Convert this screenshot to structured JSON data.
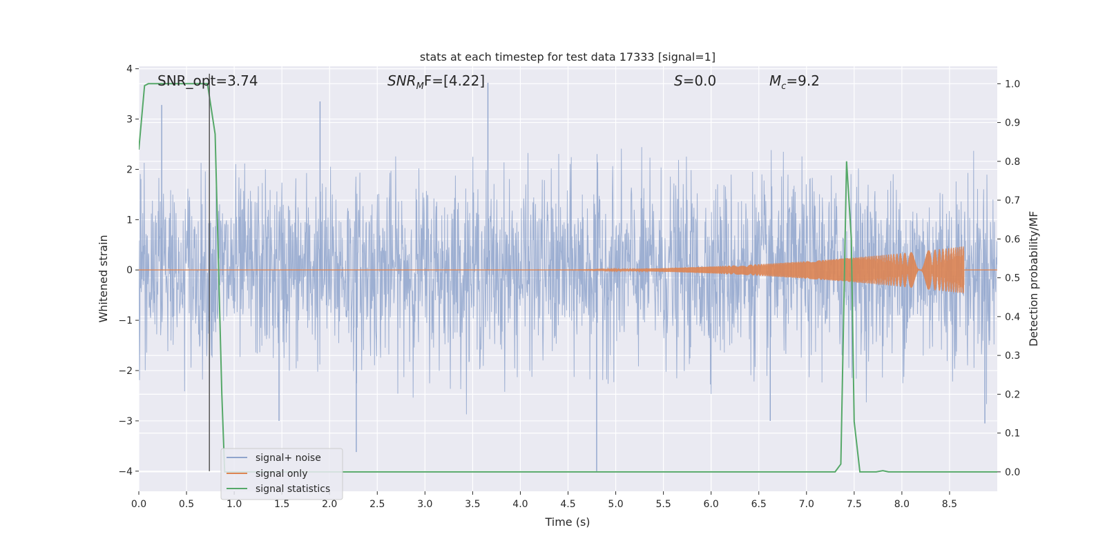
{
  "chart_data": {
    "type": "line",
    "title": "stats at each timestep for test data 17333 [signal=1]",
    "xlabel": "Time (s)",
    "ylabel": "Whitened strain",
    "y2label": "Detection probability/MF",
    "xlim": [
      0.0,
      9.0
    ],
    "ylim": [
      -4.4,
      4.05
    ],
    "y2lim": [
      -0.05,
      1.045
    ],
    "xticks": [
      "0.0",
      "0.5",
      "1.0",
      "1.5",
      "2.0",
      "2.5",
      "3.0",
      "3.5",
      "4.0",
      "4.5",
      "5.0",
      "5.5",
      "6.0",
      "6.5",
      "7.0",
      "7.5",
      "8.0",
      "8.5"
    ],
    "xtick_values": [
      0.0,
      0.5,
      1.0,
      1.5,
      2.0,
      2.5,
      3.0,
      3.5,
      4.0,
      4.5,
      5.0,
      5.5,
      6.0,
      6.5,
      7.0,
      7.5,
      8.0,
      8.5
    ],
    "yticks": [
      "−4",
      "−3",
      "−2",
      "−1",
      "0",
      "1",
      "2",
      "3",
      "4"
    ],
    "ytick_values": [
      -4,
      -3,
      -2,
      -1,
      0,
      1,
      2,
      3,
      4
    ],
    "y2ticks": [
      "0.0",
      "0.1",
      "0.2",
      "0.3",
      "0.4",
      "0.5",
      "0.6",
      "0.7",
      "0.8",
      "0.9",
      "1.0"
    ],
    "y2tick_values": [
      0.0,
      0.1,
      0.2,
      0.3,
      0.4,
      0.5,
      0.6,
      0.7,
      0.8,
      0.9,
      1.0
    ],
    "grid": true,
    "legend_placement": "lower-left",
    "annotations": {
      "snr_opt": "SNR_opt=3.74",
      "snr_mf_main": "SNR",
      "snr_mf_sub": "M",
      "snr_mf_rest": "F=[4.22]",
      "s_main": "S",
      "s_rest": "=0.0",
      "mc_main": "M",
      "mc_sub": "c",
      "mc_rest": "=9.2"
    },
    "marker_line_x": 0.74,
    "series": [
      {
        "name": "signal+ noise",
        "color": "#8fa4cc",
        "kind": "noise",
        "envelope_max": 2.1,
        "notable_peaks": [
          {
            "x": 0.24,
            "y": 3.28
          },
          {
            "x": 1.9,
            "y": 3.35
          },
          {
            "x": 3.66,
            "y": 3.72
          },
          {
            "x": 2.28,
            "y": -3.62
          },
          {
            "x": 4.8,
            "y": -4.0
          },
          {
            "x": 1.47,
            "y": -3.0
          },
          {
            "x": 8.87,
            "y": -3.05
          },
          {
            "x": 6.62,
            "y": -3.0
          }
        ]
      },
      {
        "name": "signal only",
        "color": "#dd8452",
        "kind": "chirp",
        "start_x": 4.2,
        "end_x": 8.65,
        "peak_amplitude": 0.45
      },
      {
        "name": "signal statistics",
        "color": "#55a868",
        "kind": "line",
        "axis": "right",
        "points": [
          [
            0.0,
            0.83
          ],
          [
            0.06,
            0.995
          ],
          [
            0.1,
            1.0
          ],
          [
            0.5,
            1.0
          ],
          [
            0.72,
            1.0
          ],
          [
            0.8,
            0.87
          ],
          [
            0.87,
            0.2
          ],
          [
            0.9,
            0.0
          ],
          [
            7.3,
            0.0
          ],
          [
            7.36,
            0.02
          ],
          [
            7.42,
            0.8
          ],
          [
            7.47,
            0.6
          ],
          [
            7.5,
            0.13
          ],
          [
            7.56,
            0.0
          ],
          [
            7.73,
            0.0
          ],
          [
            7.8,
            0.003
          ],
          [
            7.86,
            0.0
          ],
          [
            9.0,
            0.0
          ]
        ]
      }
    ]
  }
}
